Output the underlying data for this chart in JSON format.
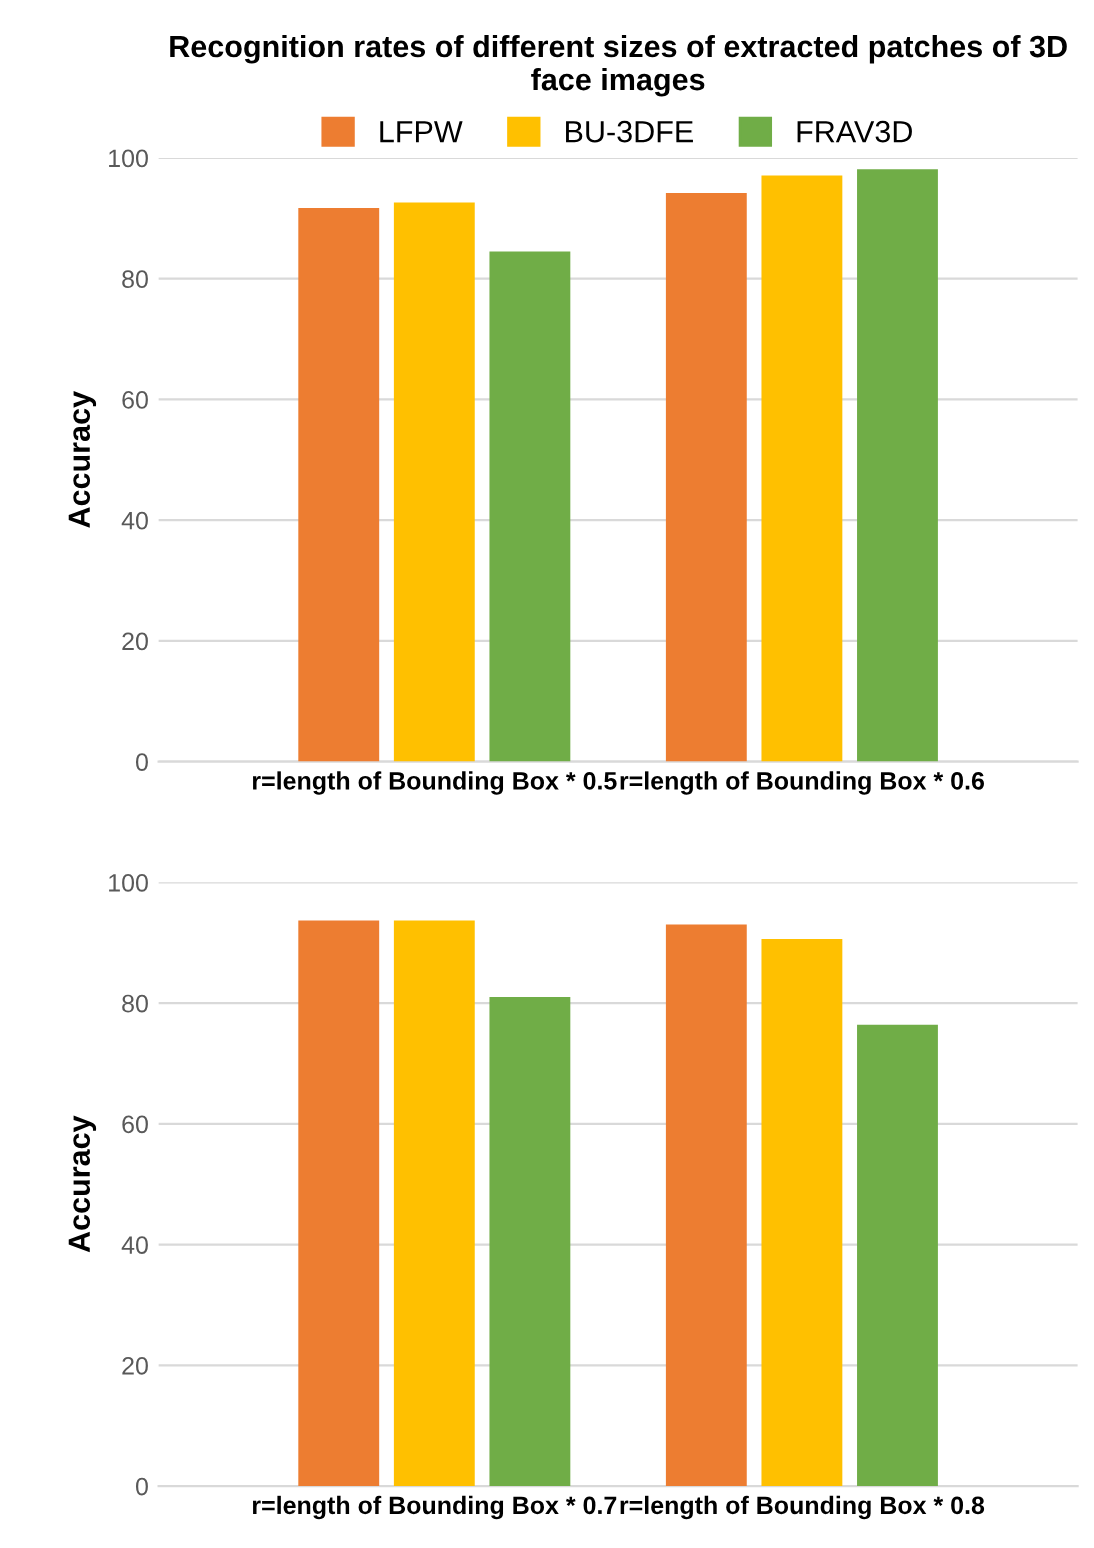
{
  "chart_data": [
    {
      "type": "bar",
      "title": "Recognition rates of different sizes of extracted patches of 3D face images",
      "ylabel": "Accuracy",
      "categories": [
        "r=length of Bounding Box * 0.5",
        "r=length of Bounding Box * 0.6"
      ],
      "series": [
        {
          "name": "LFPW",
          "color": "#ed7d31",
          "values": [
            91.7,
            94.2
          ]
        },
        {
          "name": "BU-3DFE",
          "color": "#ffc000",
          "values": [
            92.6,
            97.1
          ]
        },
        {
          "name": "FRAV3D",
          "color": "#70ad47",
          "values": [
            84.5,
            98.1
          ]
        }
      ],
      "ylim": [
        0,
        100
      ],
      "yticks": [
        0,
        20,
        40,
        60,
        80,
        100
      ],
      "grid": "y",
      "legend": "top"
    },
    {
      "type": "bar",
      "ylabel": "Accuracy",
      "categories": [
        "r=length of Bounding Box * 0.7",
        "r=length of Bounding Box * 0.8"
      ],
      "series": [
        {
          "color": "#ed7d31",
          "values": [
            93.7,
            93.0
          ]
        },
        {
          "color": "#ffc000",
          "values": [
            93.7,
            90.6
          ]
        },
        {
          "color": "#70ad47",
          "values": [
            81.0,
            76.4
          ]
        }
      ],
      "ylim": [
        0,
        100
      ],
      "yticks": [
        0,
        20,
        40,
        60,
        80,
        100
      ],
      "grid": "y"
    }
  ]
}
